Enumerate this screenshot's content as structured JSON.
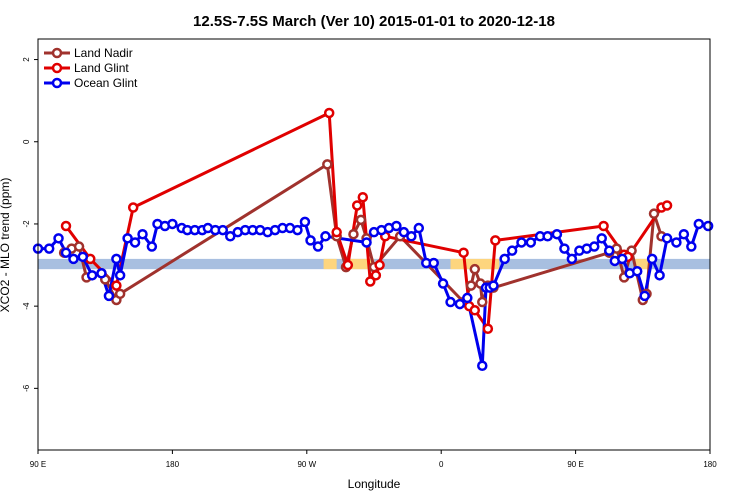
{
  "chart_data": {
    "type": "line",
    "title": "12.5S-7.5S March (Ver 10)   2015-01-01 to 2020-12-18",
    "xlabel": "Longitude",
    "ylabel": "XCO2 - MLO trend (ppm)",
    "xlim": [
      0,
      360
    ],
    "ylim": [
      -7.5,
      2.5
    ],
    "x_ticks": [
      {
        "value": 0,
        "label": "90 E"
      },
      {
        "value": 72,
        "label": "180"
      },
      {
        "value": 144,
        "label": "90 W"
      },
      {
        "value": 216,
        "label": "0"
      },
      {
        "value": 288,
        "label": "90 E"
      },
      {
        "value": 360,
        "label": "180"
      }
    ],
    "y_ticks": [
      2,
      0,
      -2,
      -4,
      -6
    ],
    "y_tick_labels": [
      "2",
      "0",
      "-2",
      "-4",
      "-6"
    ],
    "grid": false,
    "legend_position": "top-left",
    "reference_band": {
      "y_min": -3.1,
      "y_max": -2.85,
      "color": "#a8bfe0"
    },
    "highlight_bands": [
      {
        "x_min": 153,
        "x_max": 160,
        "y_min": -3.1,
        "y_max": -2.85,
        "color": "#fdd57e"
      },
      {
        "x_min": 167,
        "x_max": 180,
        "y_min": -3.1,
        "y_max": -2.85,
        "color": "#fdd57e"
      },
      {
        "x_min": 221,
        "x_max": 247,
        "y_min": -3.1,
        "y_max": -2.85,
        "color": "#fdd57e"
      },
      {
        "x_min": 320,
        "x_max": 328,
        "y_min": -3.1,
        "y_max": -2.85,
        "color": "#fdd57e"
      }
    ],
    "series": [
      {
        "name": "Land Nadir",
        "color": "#a0322d",
        "x": [
          14,
          18,
          22,
          26,
          34,
          36,
          42,
          44,
          155,
          160,
          165,
          169,
          173,
          176,
          180,
          194,
          228,
          232,
          234,
          237,
          238,
          241,
          244,
          306,
          310,
          314,
          318,
          324,
          326,
          330,
          334
        ],
        "y": [
          -2.7,
          -2.6,
          -2.55,
          -3.3,
          -3.2,
          -3.35,
          -3.85,
          -3.7,
          -0.55,
          -2.3,
          -3.05,
          -2.25,
          -1.9,
          -2.35,
          -3.05,
          -2.3,
          -3.9,
          -3.5,
          -3.1,
          -3.45,
          -3.9,
          -3.5,
          -3.55,
          -2.7,
          -2.6,
          -3.3,
          -2.65,
          -3.85,
          -3.7,
          -1.75,
          -2.3
        ]
      },
      {
        "name": "Land Glint",
        "color": "#e00000",
        "x": [
          15,
          28,
          42,
          51,
          156,
          160,
          166,
          171,
          174,
          178,
          181,
          183,
          186,
          228,
          231,
          234,
          241,
          245,
          303,
          314,
          316,
          334,
          337
        ],
        "y": [
          -2.05,
          -2.85,
          -3.5,
          -1.6,
          0.7,
          -2.2,
          -3.0,
          -1.55,
          -1.35,
          -3.4,
          -3.25,
          -3.0,
          -2.3,
          -2.7,
          -4.0,
          -4.1,
          -4.55,
          -2.4,
          -2.05,
          -2.75,
          -2.8,
          -1.6,
          -1.55
        ]
      },
      {
        "name": "Ocean Glint",
        "color": "#0000ee",
        "x": [
          0,
          6,
          11,
          15,
          19,
          24,
          29,
          34,
          38,
          42,
          44,
          48,
          52,
          56,
          61,
          64,
          68,
          72,
          77,
          80,
          84,
          88,
          91,
          95,
          99,
          103,
          107,
          111,
          115,
          119,
          123,
          127,
          131,
          135,
          139,
          143,
          146,
          150,
          154,
          176,
          180,
          184,
          188,
          192,
          196,
          200,
          204,
          208,
          212,
          217,
          221,
          226,
          230,
          238,
          240,
          242,
          244,
          250,
          254,
          259,
          264,
          269,
          273,
          278,
          282,
          286,
          290,
          294,
          298,
          302,
          306,
          309,
          313,
          317,
          321,
          325,
          329,
          333,
          337,
          342,
          346,
          350,
          354,
          359
        ],
        "y": [
          -2.6,
          -2.6,
          -2.35,
          -2.7,
          -2.85,
          -2.8,
          -3.25,
          -3.2,
          -3.75,
          -2.85,
          -3.25,
          -2.35,
          -2.45,
          -2.25,
          -2.55,
          -2.0,
          -2.05,
          -2.0,
          -2.1,
          -2.15,
          -2.15,
          -2.15,
          -2.1,
          -2.15,
          -2.15,
          -2.3,
          -2.2,
          -2.15,
          -2.15,
          -2.15,
          -2.2,
          -2.15,
          -2.1,
          -2.1,
          -2.15,
          -1.95,
          -2.4,
          -2.55,
          -2.3,
          -2.45,
          -2.2,
          -2.15,
          -2.1,
          -2.05,
          -2.2,
          -2.3,
          -2.1,
          -2.95,
          -2.95,
          -3.45,
          -3.9,
          -3.95,
          -3.8,
          -5.45,
          -3.55,
          -3.55,
          -3.5,
          -2.85,
          -2.65,
          -2.45,
          -2.45,
          -2.3,
          -2.3,
          -2.25,
          -2.6,
          -2.85,
          -2.65,
          -2.6,
          -2.55,
          -2.35,
          -2.65,
          -2.9,
          -2.85,
          -3.2,
          -3.15,
          -3.75,
          -2.85,
          -3.25,
          -2.35,
          -2.45,
          -2.25,
          -2.55,
          -2.0,
          -2.05
        ]
      }
    ]
  }
}
